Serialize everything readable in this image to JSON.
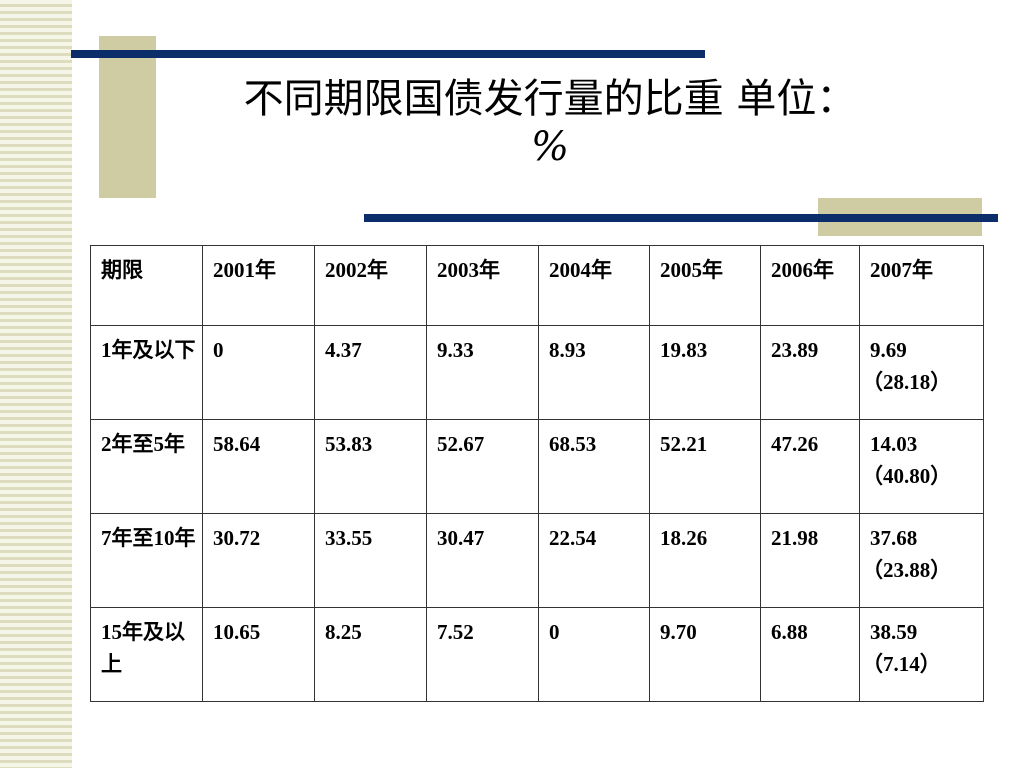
{
  "title": {
    "line1": "不同期限国债发行量的比重   单位：",
    "line2": "%"
  },
  "table": {
    "headers": [
      "期限",
      "2001年",
      "2002年",
      "2003年",
      "2004年",
      "2005年",
      "2006年",
      "2007年"
    ],
    "rows": [
      {
        "term": "1年及以下",
        "values": [
          "0",
          "4.37",
          "9.33",
          "8.93",
          "19.83",
          "23.89"
        ],
        "last_value": "9.69",
        "last_paren": "（28.18）"
      },
      {
        "term": "2年至5年",
        "values": [
          "58.64",
          "53.83",
          "52.67",
          "68.53",
          "52.21",
          "47.26"
        ],
        "last_value": "14.03",
        "last_paren": "（40.80）"
      },
      {
        "term": "7年至10年",
        "values": [
          "30.72",
          "33.55",
          "30.47",
          "22.54",
          "18.26",
          "21.98"
        ],
        "last_value": "37.68",
        "last_paren": "（23.88）"
      },
      {
        "term": "15年及以上",
        "values": [
          "10.65",
          "8.25",
          "7.52",
          "0",
          "9.70",
          "6.88"
        ],
        "last_value": "38.59",
        "last_paren": "（7.14）"
      }
    ]
  },
  "colors": {
    "accent_line": "#0b2e6b",
    "accent_block": "#cfcca4"
  }
}
